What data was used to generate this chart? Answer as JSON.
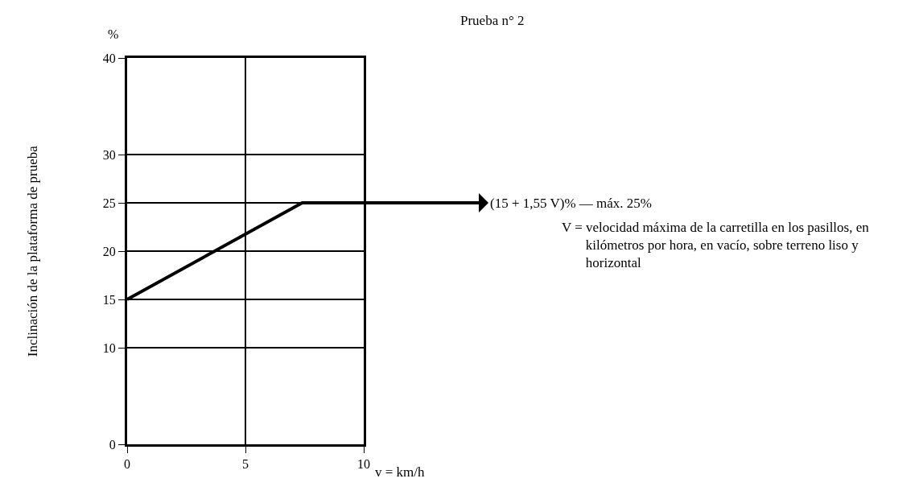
{
  "chart_data": {
    "type": "line",
    "title": "Prueba n° 2",
    "ylabel": "Inclinación de la plataforma de prueba",
    "xlabel": "v = km/h",
    "x": [
      0,
      7.4,
      10
    ],
    "series": [
      {
        "color": "#000000",
        "values": [
          15,
          25,
          25
        ]
      }
    ],
    "xlim": [
      0,
      10
    ],
    "xticks": [
      0,
      5,
      10
    ],
    "ylim": [
      0,
      40
    ],
    "yticks": [
      0,
      10,
      15,
      20,
      25,
      30,
      40
    ],
    "grid": true,
    "marker": "none",
    "line_style": "solid",
    "annotations": [
      "%",
      {
        "text": "(15 + 1,55 V)% — máx. 25%",
        "x": 10,
        "y": 25
      },
      "V = velocidad máxima de la carretilla en los pasillos, en kilómetros por hora, en vacío, sobre terreno liso y horizontal"
    ]
  }
}
